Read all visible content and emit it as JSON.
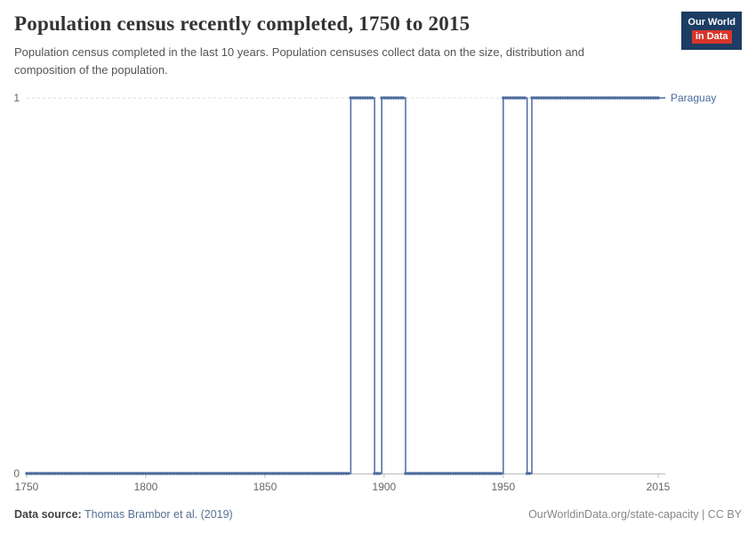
{
  "header": {
    "title": "Population census recently completed, 1750 to 2015",
    "subtitle": "Population census completed in the last 10 years. Population censuses collect data on the size, distribution and composition of the population.",
    "logo": {
      "line1": "Our World",
      "line2": "in Data",
      "navy": "#1d3d63",
      "red": "#d8352a"
    }
  },
  "footer": {
    "source_label": "Data source:",
    "source_value": "Thomas Brambor et al. (2019)",
    "credit": "OurWorldinData.org/state-capacity | CC BY"
  },
  "chart_data": {
    "type": "line",
    "subtype": "step-binary-indicator",
    "title": "Population census recently completed, 1750 to 2015",
    "xlabel": "",
    "ylabel": "",
    "xlim": [
      1750,
      2015
    ],
    "ylim": [
      0,
      1
    ],
    "x_ticks": [
      1750,
      1800,
      1850,
      1900,
      1950,
      2015
    ],
    "y_ticks": [
      0,
      1
    ],
    "grid": "dashed horizontal gridline at y=1, solid axis line at y=0",
    "legend_position": "label at end of line",
    "series": [
      {
        "name": "Paraguay",
        "color": "#4C6A9C",
        "steps": [
          [
            1750,
            0
          ],
          [
            1886,
            1
          ],
          [
            1896,
            0
          ],
          [
            1899,
            1
          ],
          [
            1909,
            0
          ],
          [
            1950,
            1
          ],
          [
            1960,
            0
          ],
          [
            1962,
            1
          ]
        ],
        "end_year": 2015,
        "end_value": 1
      }
    ]
  }
}
